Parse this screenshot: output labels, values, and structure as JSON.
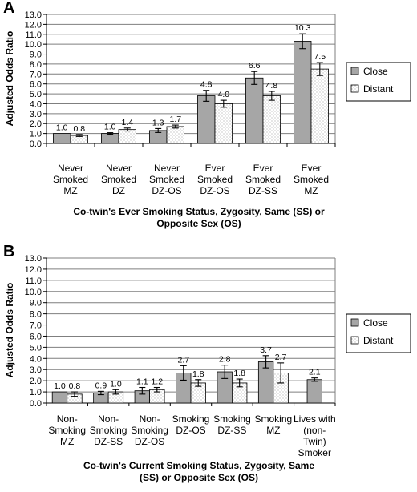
{
  "colors": {
    "close_fill": "#a6a6a6",
    "distant_fill": "#ffffff",
    "dots": "#888888",
    "grid": "#7f7f7f",
    "bar_stroke": "#000000"
  },
  "legend": {
    "close": "Close",
    "distant": "Distant",
    "placement": "right"
  },
  "chart_data": [
    {
      "type": "bar",
      "panel": "A",
      "ylabel": "Adjusted Odds Ratio",
      "xlabel": [
        "Co-twin's Ever Smoking Status, Zygosity, Same (SS) or",
        "Opposite Sex (OS)"
      ],
      "ylim": [
        0,
        13
      ],
      "ystep": 1,
      "grid": true,
      "categories": [
        [
          "Never",
          "Smoked",
          "MZ"
        ],
        [
          "Never",
          "Smoked",
          "DZ"
        ],
        [
          "Never",
          "Smoked",
          "DZ-OS"
        ],
        [
          "Ever",
          "Smoked",
          "DZ-OS"
        ],
        [
          "Ever",
          "Smoked",
          "DZ-SS"
        ],
        [
          "Ever",
          "Smoked",
          "MZ"
        ]
      ],
      "series": [
        {
          "name": "Close",
          "values": [
            1.0,
            1.0,
            1.3,
            4.8,
            6.6,
            10.3
          ],
          "labels": [
            "1.0",
            "1.0",
            "1.3",
            "4.8",
            "6.6",
            "10.3"
          ],
          "err": [
            0.0,
            0.08,
            0.2,
            0.55,
            0.65,
            0.75
          ]
        },
        {
          "name": "Distant",
          "values": [
            0.8,
            1.4,
            1.7,
            4.0,
            4.8,
            7.5
          ],
          "labels": [
            "0.8",
            "1.4",
            "1.7",
            "4.0",
            "4.8",
            "7.5"
          ],
          "err": [
            0.1,
            0.15,
            0.15,
            0.35,
            0.45,
            0.65
          ]
        }
      ]
    },
    {
      "type": "bar",
      "panel": "B",
      "ylabel": "Adjusted Odds Ratio",
      "xlabel": [
        "Co-twin's Current Smoking Status, Zygosity, Same",
        "(SS) or Opposite Sex (OS)"
      ],
      "ylim": [
        0,
        13
      ],
      "ystep": 1,
      "grid": true,
      "categories": [
        [
          "Non-",
          "Smoking",
          "MZ"
        ],
        [
          "Non-",
          "Smoking",
          "DZ-SS"
        ],
        [
          "Non-",
          "Smoking",
          "DZ-OS"
        ],
        [
          "Smoking",
          "DZ-OS"
        ],
        [
          "Smoking",
          "DZ-SS"
        ],
        [
          "Smoking",
          "MZ"
        ],
        [
          "Lives with",
          "(non-",
          "Twin)",
          "Smoker"
        ]
      ],
      "series": [
        {
          "name": "Close",
          "values": [
            1.0,
            0.9,
            1.1,
            2.7,
            2.8,
            3.7,
            2.1
          ],
          "labels": [
            "1.0",
            "0.9",
            "1.1",
            "2.7",
            "2.8",
            "3.7",
            "2.1"
          ],
          "err": [
            0.0,
            0.15,
            0.3,
            0.65,
            0.6,
            0.55,
            0.15
          ]
        },
        {
          "name": "Distant",
          "values": [
            0.8,
            1.0,
            1.2,
            1.8,
            1.8,
            2.7,
            null
          ],
          "labels": [
            "0.8",
            "1.0",
            "1.2",
            "1.8",
            "1.8",
            "2.7",
            ""
          ],
          "err": [
            0.2,
            0.2,
            0.2,
            0.3,
            0.35,
            0.9,
            0
          ]
        }
      ]
    }
  ]
}
